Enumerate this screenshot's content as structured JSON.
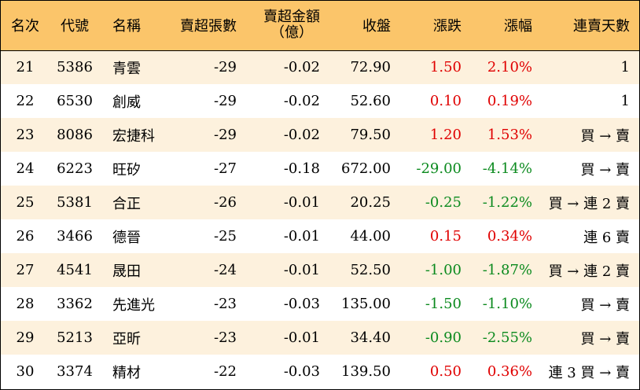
{
  "headers": {
    "rank": "名次",
    "code": "代號",
    "name": "名稱",
    "sell_lots": "賣超張數",
    "sell_amount_line1": "賣超金額",
    "sell_amount_line2": "（億）",
    "close": "收盤",
    "change": "漲跌",
    "change_pct": "漲幅",
    "streak": "連賣天數"
  },
  "colors": {
    "header_bg": "#fbc56a",
    "stripe_bg": "#fdf1dd",
    "up": "#e00000",
    "down": "#0b8a1e"
  },
  "rows": [
    {
      "rank": "21",
      "code": "5386",
      "name": "青雲",
      "lots": "-29",
      "amount": "-0.02",
      "close": "72.90",
      "change": "1.50",
      "pct": "2.10%",
      "dir": "up",
      "streak": "1"
    },
    {
      "rank": "22",
      "code": "6530",
      "name": "創威",
      "lots": "-29",
      "amount": "-0.02",
      "close": "52.60",
      "change": "0.10",
      "pct": "0.19%",
      "dir": "up",
      "streak": "1"
    },
    {
      "rank": "23",
      "code": "8086",
      "name": "宏捷科",
      "lots": "-29",
      "amount": "-0.02",
      "close": "79.50",
      "change": "1.20",
      "pct": "1.53%",
      "dir": "up",
      "streak": "買 → 賣"
    },
    {
      "rank": "24",
      "code": "6223",
      "name": "旺矽",
      "lots": "-27",
      "amount": "-0.18",
      "close": "672.00",
      "change": "-29.00",
      "pct": "-4.14%",
      "dir": "down",
      "streak": "買 → 賣"
    },
    {
      "rank": "25",
      "code": "5381",
      "name": "合正",
      "lots": "-26",
      "amount": "-0.01",
      "close": "20.25",
      "change": "-0.25",
      "pct": "-1.22%",
      "dir": "down",
      "streak": "買 → 連 2 賣"
    },
    {
      "rank": "26",
      "code": "3466",
      "name": "德晉",
      "lots": "-25",
      "amount": "-0.01",
      "close": "44.00",
      "change": "0.15",
      "pct": "0.34%",
      "dir": "up",
      "streak": "連 6 賣"
    },
    {
      "rank": "27",
      "code": "4541",
      "name": "晟田",
      "lots": "-24",
      "amount": "-0.01",
      "close": "52.50",
      "change": "-1.00",
      "pct": "-1.87%",
      "dir": "down",
      "streak": "買 → 連 2 賣"
    },
    {
      "rank": "28",
      "code": "3362",
      "name": "先進光",
      "lots": "-23",
      "amount": "-0.03",
      "close": "135.00",
      "change": "-1.50",
      "pct": "-1.10%",
      "dir": "down",
      "streak": "買 → 賣"
    },
    {
      "rank": "29",
      "code": "5213",
      "name": "亞昕",
      "lots": "-23",
      "amount": "-0.01",
      "close": "34.40",
      "change": "-0.90",
      "pct": "-2.55%",
      "dir": "down",
      "streak": "買 → 賣"
    },
    {
      "rank": "30",
      "code": "3374",
      "name": "精材",
      "lots": "-22",
      "amount": "-0.03",
      "close": "139.50",
      "change": "0.50",
      "pct": "0.36%",
      "dir": "up",
      "streak": "連 3 買 → 賣"
    }
  ]
}
